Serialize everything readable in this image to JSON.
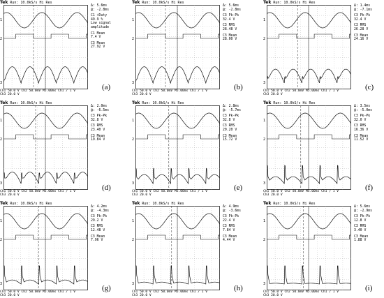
{
  "header": {
    "brand": "Tek",
    "status": "Run: 10.0kS/s",
    "mode": "Hi Res"
  },
  "footer": {
    "ch1_label": "Ch1",
    "ch1_scale": "50.0 V",
    "ch2_label": "Ch2",
    "ch2_scale": "50.0mV",
    "timebase": "M5.00ms",
    "trigger": "Ch1 ∕",
    "trigger_level": "1 V",
    "ch3_label": "Ch3",
    "ch3_scale": "20.0 V"
  },
  "panels": [
    {
      "id": "a",
      "letter": "(a)",
      "delta_t": "Δ: 5.6ms",
      "at_t": "@: -2.8ms",
      "m1_title": "C1 +Duty",
      "m1_value": "49.9 %",
      "m1_note1": "Low signal",
      "m1_note2": "amplitude",
      "m2_title": "C1 Mean",
      "m2_value": "7.4 V",
      "m3_title": "C3 Mean",
      "m3_value": "27.92 V",
      "offset": 1.0,
      "spike": 0.05
    },
    {
      "id": "b",
      "letter": "(b)",
      "delta_t": "Δ: 5.6ms",
      "at_t": "@: -2.8ms",
      "m1_title": "C3 Pk-Pk",
      "m1_value": "32.4 V",
      "m1_note1": "",
      "m1_note2": "",
      "m2_title": "C3 RMS",
      "m2_value": "28.48 V",
      "m3_title": "C3 Mean",
      "m3_value": "28.00 V",
      "offset": 1.0,
      "spike": 0.05
    },
    {
      "id": "c",
      "letter": "(c)",
      "delta_t": "Δ: 1.4ms",
      "at_t": "@: -7.1ms",
      "m1_title": "C3 Pk-Pk",
      "m1_value": "32.4 V",
      "m1_note1": "",
      "m1_note2": "",
      "m2_title": "C3 RMS",
      "m2_value": "26.28 V",
      "m3_title": "C3 Mean",
      "m3_value": "24.16 V",
      "offset": 0.85,
      "spike": 0.15
    },
    {
      "id": "d",
      "letter": "(d)",
      "delta_t": "Δ: 2.0ms",
      "at_t": "@: -6.5ms",
      "m1_title": "C3 Pk-Pk",
      "m1_value": "32.8 V",
      "m1_note1": "",
      "m1_note2": "",
      "m2_title": "C3 RMS",
      "m2_value": "23.40 V",
      "m3_title": "C3 Mean",
      "m3_value": "19.84 V",
      "offset": 0.7,
      "spike": 0.3
    },
    {
      "id": "e",
      "letter": "(e)",
      "delta_t": "Δ: 2.8ms",
      "at_t": "@: -5.7ms",
      "m1_title": "C3 Pk-Pk",
      "m1_value": "32.8 V",
      "m1_note1": "",
      "m1_note2": "",
      "m2_title": "C3 RMS",
      "m2_value": "20.20 V",
      "m3_title": "C3 Mean",
      "m3_value": "15.72 V",
      "offset": 0.55,
      "spike": 0.45
    },
    {
      "id": "f",
      "letter": "(f)",
      "delta_t": "Δ: 3.5ms",
      "at_t": "@: -5.0ms",
      "m1_title": "C3 Pk-Pk",
      "m1_value": "32.0 V",
      "m1_note1": "",
      "m1_note2": "",
      "m2_title": "C3 RMS",
      "m2_value": "16.36 V",
      "m3_title": "C3 Mean",
      "m3_value": "11.52 V",
      "offset": 0.42,
      "spike": 0.55
    },
    {
      "id": "g",
      "letter": "(g)",
      "delta_t": "Δ: 4.2ms",
      "at_t": "@: -4.3ms",
      "m1_title": "C3 Pk-Pk",
      "m1_value": "29.2 V",
      "m1_note1": "",
      "m1_note2": "",
      "m2_title": "C3 RMS",
      "m2_value": "12.48 V",
      "m3_title": "C3 Mean",
      "m3_value": "7.96 V",
      "offset": 0.25,
      "spike": 0.7
    },
    {
      "id": "h",
      "letter": "(h)",
      "delta_t": "Δ: 4.9ms",
      "at_t": "@: -3.6ms",
      "m1_title": "C3 Pk-Pk",
      "m1_value": "22.4 V",
      "m1_note1": "",
      "m1_note2": "",
      "m2_title": "C3 RMS",
      "m2_value": "7.84 V",
      "m3_title": "C3 Mean",
      "m3_value": "4.44 V",
      "offset": 0.12,
      "spike": 0.82
    },
    {
      "id": "i",
      "letter": "(i)",
      "delta_t": "Δ: 5.6ms",
      "at_t": "@: -2.9ms",
      "m1_title": "C3 Pk-Pk",
      "m1_value": "12.8 V",
      "m1_note1": "",
      "m1_note2": "",
      "m2_title": "C3 RMS",
      "m2_value": "3.40 V",
      "m3_title": "C3 Mean",
      "m3_value": "1.88 V",
      "offset": 0.05,
      "spike": 0.9
    }
  ]
}
